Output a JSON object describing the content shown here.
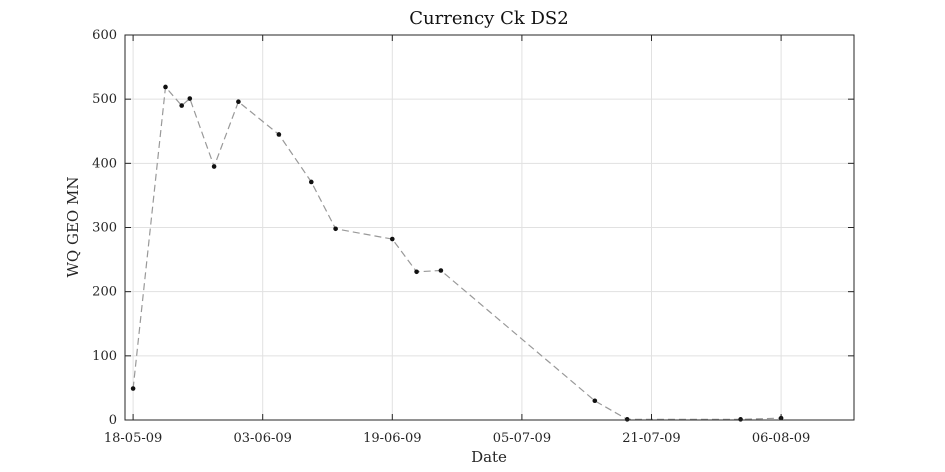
{
  "chart_data": {
    "type": "line",
    "title": "Currency Ck DS2",
    "xlabel": "Date",
    "ylabel": "WQ GEO MN",
    "x_axis": {
      "type": "date",
      "range": [
        "2009-05-17",
        "2009-08-15"
      ],
      "ticks": [
        {
          "date": "2009-05-18",
          "label": "18-05-09"
        },
        {
          "date": "2009-06-03",
          "label": "03-06-09"
        },
        {
          "date": "2009-06-19",
          "label": "19-06-09"
        },
        {
          "date": "2009-07-05",
          "label": "05-07-09"
        },
        {
          "date": "2009-07-21",
          "label": "21-07-09"
        },
        {
          "date": "2009-08-06",
          "label": "06-08-09"
        }
      ]
    },
    "y_axis": {
      "range": [
        0,
        600
      ],
      "ticks": [
        0,
        100,
        200,
        300,
        400,
        500,
        600
      ]
    },
    "grid": true,
    "series": [
      {
        "line_style": "dashed",
        "marker": "dot",
        "color": "#999999",
        "marker_color": "#111111",
        "points": [
          {
            "x": "2009-05-18",
            "y": 49
          },
          {
            "x": "2009-05-22",
            "y": 519
          },
          {
            "x": "2009-05-24",
            "y": 490
          },
          {
            "x": "2009-05-25",
            "y": 501
          },
          {
            "x": "2009-05-28",
            "y": 395
          },
          {
            "x": "2009-05-31",
            "y": 496
          },
          {
            "x": "2009-06-05",
            "y": 445
          },
          {
            "x": "2009-06-09",
            "y": 371
          },
          {
            "x": "2009-06-12",
            "y": 298
          },
          {
            "x": "2009-06-19",
            "y": 282
          },
          {
            "x": "2009-06-22",
            "y": 231
          },
          {
            "x": "2009-06-25",
            "y": 233
          },
          {
            "x": "2009-07-14",
            "y": 30
          },
          {
            "x": "2009-07-18",
            "y": 1
          },
          {
            "x": "2009-08-01",
            "y": 1
          },
          {
            "x": "2009-08-06",
            "y": 3
          }
        ]
      }
    ]
  }
}
